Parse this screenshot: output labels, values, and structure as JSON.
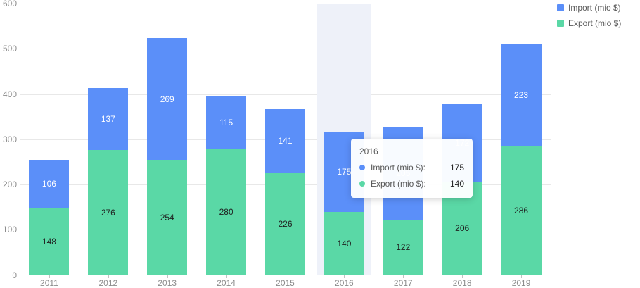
{
  "legend": {
    "items": [
      {
        "label": "Import (mio $)",
        "color": "#5B8FF9"
      },
      {
        "label": "Export (mio $)",
        "color": "#5AD8A6"
      }
    ]
  },
  "tooltip": {
    "title": "2016",
    "rows": [
      {
        "label": "Import (mio $):",
        "value": "175",
        "color": "#5B8FF9"
      },
      {
        "label": "Export (mio $):",
        "value": "140",
        "color": "#5AD8A6"
      }
    ]
  },
  "chart_data": {
    "type": "bar",
    "stacked": true,
    "title": "",
    "xlabel": "",
    "ylabel": "",
    "categories": [
      "2011",
      "2012",
      "2013",
      "2014",
      "2015",
      "2016",
      "2017",
      "2018",
      "2019"
    ],
    "series": [
      {
        "name": "Import (mio $)",
        "color": "#5B8FF9",
        "label_color": "#ffffff",
        "values": [
          106,
          137,
          269,
          115,
          141,
          175,
          205,
          172,
          223
        ]
      },
      {
        "name": "Export (mio $)",
        "color": "#5AD8A6",
        "label_color": "#1f1f1f",
        "values": [
          148,
          276,
          254,
          280,
          226,
          140,
          122,
          206,
          286
        ]
      }
    ],
    "ylim": [
      0,
      600
    ],
    "y_ticks": [
      "0",
      "100",
      "200",
      "300",
      "400",
      "500",
      "600"
    ],
    "grid": true,
    "legend_position": "top-right",
    "highlighted_category": "2016"
  },
  "colors": {
    "hover_band": "#eef1f9",
    "gridline": "#e8e8e8",
    "axis": "#c2c2c2",
    "axis_text": "#8c8c8c"
  }
}
